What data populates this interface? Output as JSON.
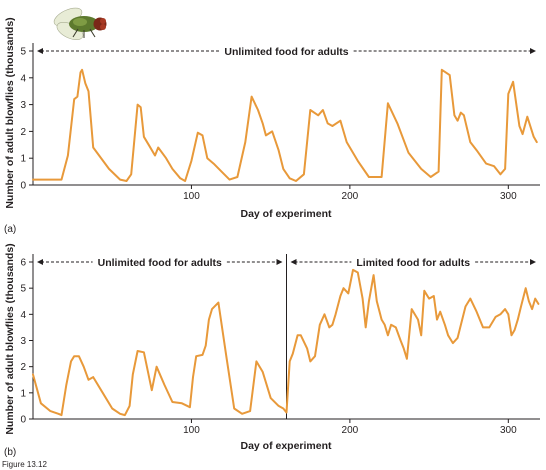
{
  "figure_caption": "Figure 13.12",
  "chart_data": [
    {
      "panel": "(a)",
      "type": "line",
      "xlabel": "Day of experiment",
      "ylabel": "Number of adult blowflies (thousands)",
      "xlim": [
        0,
        320
      ],
      "ylim": [
        0,
        5
      ],
      "xticks": [
        100,
        200,
        300
      ],
      "yticks": [
        0,
        1,
        2,
        3,
        4,
        5
      ],
      "color": "#e8993a",
      "annotations": [
        {
          "text": "Unlimited food for adults",
          "x_start": 0,
          "x_end": 320,
          "y": 5
        }
      ],
      "series": [
        {
          "x": [
            0,
            18,
            22,
            26,
            28,
            30,
            31,
            33,
            35,
            38,
            48,
            55,
            59,
            62,
            66,
            68,
            70,
            73,
            77,
            79,
            84,
            88,
            93,
            96,
            100,
            104,
            107,
            110,
            114,
            119,
            124,
            129,
            134,
            138,
            142,
            145,
            147,
            151,
            155,
            158,
            162,
            166,
            171,
            175,
            180,
            183,
            186,
            189,
            194,
            198,
            205,
            212,
            220,
            224,
            230,
            237,
            245,
            251,
            256,
            258,
            263,
            266,
            268,
            270,
            272,
            276,
            280,
            286,
            291,
            295,
            298,
            300,
            303,
            307,
            309,
            312,
            316,
            318
          ],
          "y": [
            0.2,
            0.2,
            1.1,
            3.2,
            3.3,
            4.2,
            4.3,
            3.8,
            3.5,
            1.4,
            0.6,
            0.2,
            0.15,
            0.4,
            3.0,
            2.9,
            1.8,
            1.5,
            1.1,
            1.4,
            1.0,
            0.6,
            0.25,
            0.15,
            0.9,
            1.95,
            1.85,
            1.0,
            0.8,
            0.5,
            0.2,
            0.3,
            1.6,
            3.3,
            2.8,
            2.3,
            1.85,
            2.0,
            1.3,
            0.6,
            0.25,
            0.15,
            0.4,
            2.8,
            2.6,
            2.8,
            2.3,
            2.2,
            2.4,
            1.6,
            0.9,
            0.3,
            0.3,
            3.05,
            2.3,
            1.2,
            0.6,
            0.3,
            0.5,
            4.3,
            4.1,
            2.6,
            2.4,
            2.7,
            2.6,
            1.6,
            1.3,
            0.8,
            0.7,
            0.4,
            0.6,
            3.4,
            3.85,
            2.2,
            1.9,
            2.55,
            1.8,
            1.6
          ]
        }
      ]
    },
    {
      "panel": "(b)",
      "type": "line",
      "xlabel": "Day of experiment",
      "ylabel": "Number of adult blowflies (thousands)",
      "xlim": [
        0,
        320
      ],
      "ylim": [
        0,
        6
      ],
      "xticks": [
        100,
        200,
        300
      ],
      "yticks": [
        0,
        1,
        2,
        3,
        4,
        5,
        6
      ],
      "color": "#e8993a",
      "divider_x": 160,
      "annotations": [
        {
          "text": "Unlimited food for adults",
          "x_start": 0,
          "x_end": 160,
          "y": 6
        },
        {
          "text": "Limited food for adults",
          "x_start": 160,
          "x_end": 320,
          "y": 6
        }
      ],
      "series": [
        {
          "x": [
            0,
            5,
            11,
            16,
            18,
            21,
            24,
            26,
            29,
            32,
            35,
            38,
            44,
            50,
            55,
            58,
            61,
            63,
            66,
            70,
            75,
            78,
            83,
            88,
            94,
            99,
            101,
            103,
            107,
            109,
            111,
            113,
            117,
            122,
            127,
            132,
            137,
            141,
            145,
            150,
            155,
            158,
            160,
            162,
            164,
            167,
            169,
            173,
            175,
            178,
            181,
            184,
            187,
            189,
            191,
            194,
            196,
            199,
            202,
            205,
            208,
            210,
            212,
            215,
            217,
            220,
            222,
            224,
            226,
            229,
            232,
            234,
            236,
            239,
            243,
            245,
            247,
            250,
            253,
            255,
            257,
            260,
            262,
            265,
            268,
            273,
            276,
            280,
            284,
            288,
            292,
            295,
            298,
            300,
            302,
            304,
            306,
            308,
            311,
            313,
            315,
            317,
            319
          ],
          "y": [
            1.7,
            0.6,
            0.3,
            0.2,
            0.15,
            1.3,
            2.2,
            2.4,
            2.4,
            2.0,
            1.5,
            1.6,
            1.0,
            0.4,
            0.2,
            0.15,
            0.5,
            1.7,
            2.6,
            2.55,
            1.1,
            2.0,
            1.3,
            0.65,
            0.6,
            0.45,
            1.6,
            2.4,
            2.45,
            2.8,
            3.8,
            4.2,
            4.45,
            2.4,
            0.4,
            0.2,
            0.3,
            2.2,
            1.8,
            0.8,
            0.5,
            0.4,
            0.25,
            2.2,
            2.5,
            3.2,
            3.2,
            2.7,
            2.2,
            2.4,
            3.6,
            4.0,
            3.5,
            3.6,
            4.0,
            4.7,
            5.0,
            4.8,
            5.7,
            5.6,
            4.6,
            3.5,
            4.5,
            5.5,
            4.5,
            3.8,
            3.6,
            3.2,
            3.6,
            3.5,
            3.0,
            2.7,
            2.3,
            4.2,
            3.8,
            3.2,
            4.9,
            4.6,
            4.7,
            3.8,
            4.1,
            3.6,
            3.2,
            2.9,
            3.1,
            4.3,
            4.6,
            4.1,
            3.5,
            3.5,
            3.9,
            4.0,
            4.2,
            4.0,
            3.2,
            3.4,
            3.8,
            4.3,
            5.0,
            4.5,
            4.2,
            4.6,
            4.4
          ]
        }
      ]
    }
  ]
}
